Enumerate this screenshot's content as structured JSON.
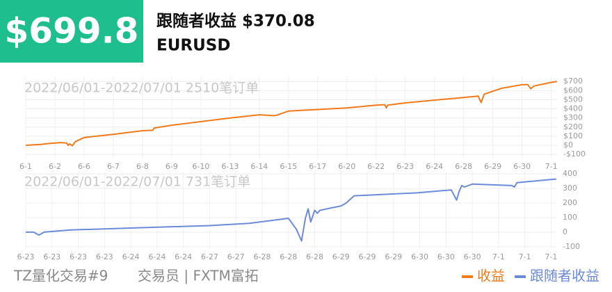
{
  "header": {
    "amount": "$699.8",
    "title": "跟随者收益 $370.08",
    "symbol": "EURUSD"
  },
  "chart_data": [
    {
      "type": "line",
      "annotation": "2022/06/01-2022/07/01 2510笔订单",
      "xlim": [
        0,
        18.2
      ],
      "ylim": [
        -145,
        755
      ],
      "grid": true,
      "xticks": [
        {
          "value": 0,
          "label": "6-1"
        },
        {
          "value": 1,
          "label": "6-2"
        },
        {
          "value": 2,
          "label": "6-6"
        },
        {
          "value": 3,
          "label": "6-7"
        },
        {
          "value": 4,
          "label": "6-8"
        },
        {
          "value": 5,
          "label": "6-9"
        },
        {
          "value": 6,
          "label": "6-10"
        },
        {
          "value": 7,
          "label": "6-13"
        },
        {
          "value": 8,
          "label": "6-14"
        },
        {
          "value": 9,
          "label": "6-15"
        },
        {
          "value": 10,
          "label": "6-17"
        },
        {
          "value": 11,
          "label": "6-20"
        },
        {
          "value": 12,
          "label": "6-22"
        },
        {
          "value": 13,
          "label": "6-23"
        },
        {
          "value": 14,
          "label": "6-24"
        },
        {
          "value": 15,
          "label": "6-28"
        },
        {
          "value": 16,
          "label": "6-29"
        },
        {
          "value": 17,
          "label": "6-30"
        },
        {
          "value": 18,
          "label": "7-1"
        }
      ],
      "yticks": [
        {
          "value": 700,
          "label": "$700"
        },
        {
          "value": 600,
          "label": "$600"
        },
        {
          "value": 500,
          "label": "$500"
        },
        {
          "value": 400,
          "label": "$400"
        },
        {
          "value": 300,
          "label": "$300"
        },
        {
          "value": 200,
          "label": "$200"
        },
        {
          "value": 100,
          "label": "$100"
        },
        {
          "value": 0,
          "label": "$0"
        },
        {
          "value": -100,
          "label": "-$100"
        }
      ],
      "series": [
        {
          "name": "收益",
          "color": "#f07a1a",
          "x": [
            0,
            0.3,
            0.5,
            0.8,
            1.2,
            1.4,
            1.45,
            1.5,
            1.6,
            1.7,
            2,
            3,
            4,
            4.35,
            4.4,
            5,
            7,
            8,
            8.5,
            8.6,
            9,
            11,
            12,
            12.3,
            12.35,
            12.4,
            13,
            15,
            15.5,
            15.55,
            15.6,
            15.7,
            16.3,
            17,
            17.2,
            17.3,
            17.4,
            18,
            18.2
          ],
          "values": [
            0,
            5,
            10,
            20,
            30,
            25,
            0,
            15,
            -5,
            40,
            85,
            120,
            160,
            165,
            190,
            220,
            300,
            335,
            325,
            330,
            375,
            410,
            440,
            445,
            410,
            440,
            465,
            525,
            540,
            500,
            470,
            560,
            625,
            665,
            665,
            620,
            650,
            690,
            700
          ]
        }
      ]
    },
    {
      "type": "line",
      "annotation": "2022/06/01-2022/07/01 731笔订单",
      "xlim": [
        0,
        20.2
      ],
      "ylim": [
        -115,
        415
      ],
      "grid": true,
      "xticks": [
        {
          "value": 0,
          "label": "6-23"
        },
        {
          "value": 1,
          "label": "6-23"
        },
        {
          "value": 2,
          "label": "6-23"
        },
        {
          "value": 3,
          "label": "6-23"
        },
        {
          "value": 4,
          "label": "6-24"
        },
        {
          "value": 5,
          "label": "6-24"
        },
        {
          "value": 6,
          "label": "6-24"
        },
        {
          "value": 7,
          "label": "6-27"
        },
        {
          "value": 8,
          "label": "6-27"
        },
        {
          "value": 9,
          "label": "6-28"
        },
        {
          "value": 10,
          "label": "6-28"
        },
        {
          "value": 11,
          "label": "6-28"
        },
        {
          "value": 12,
          "label": "6-29"
        },
        {
          "value": 13,
          "label": "6-29"
        },
        {
          "value": 14,
          "label": "6-29"
        },
        {
          "value": 15,
          "label": "6-30"
        },
        {
          "value": 16,
          "label": "6-30"
        },
        {
          "value": 17,
          "label": "6-30"
        },
        {
          "value": 18,
          "label": "7-1"
        },
        {
          "value": 19,
          "label": "7-1"
        },
        {
          "value": 20,
          "label": "7-1"
        }
      ],
      "yticks": [
        400,
        300,
        200,
        100,
        0,
        -100
      ],
      "series": [
        {
          "name": "跟随者收益",
          "color": "#6b8ad8",
          "x": [
            0,
            0.3,
            0.5,
            0.6,
            0.7,
            1.7,
            4.3,
            7,
            8.5,
            10,
            10.3,
            10.5,
            10.65,
            10.75,
            10.85,
            11,
            11.1,
            11.2,
            12,
            12.2,
            12.5,
            14.9,
            16.2,
            16.4,
            16.5,
            16.6,
            16.7,
            17,
            18.5,
            18.6,
            18.7,
            20.2
          ],
          "values": [
            0,
            0,
            -20,
            -10,
            0,
            15,
            30,
            45,
            60,
            95,
            20,
            -60,
            100,
            160,
            70,
            150,
            130,
            150,
            180,
            200,
            250,
            270,
            290,
            220,
            280,
            320,
            310,
            330,
            320,
            310,
            340,
            365
          ]
        }
      ]
    }
  ],
  "footer": {
    "account": "TZ量化交易#9",
    "trader": "交易员 | FXTM富拓"
  }
}
